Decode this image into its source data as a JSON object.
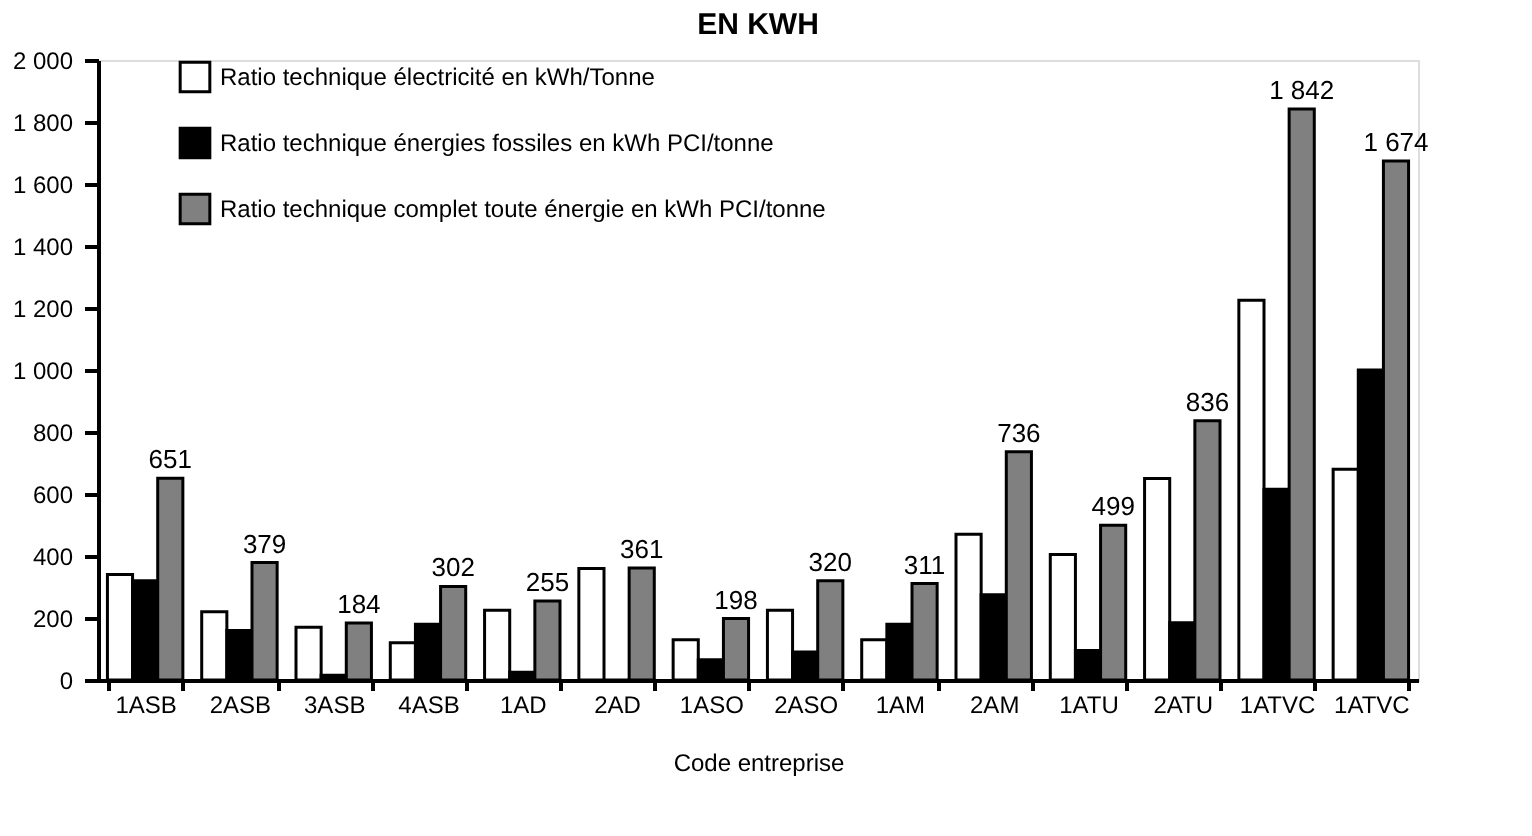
{
  "chart_data": {
    "type": "bar",
    "title": "EN KWH",
    "xlabel": "Code entreprise",
    "categories": [
      "1ASB",
      "2ASB",
      "3ASB",
      "4ASB",
      "1AD",
      "2AD",
      "1ASO",
      "2ASO",
      "1AM",
      "2AM",
      "1ATU",
      "2ATU",
      "1ATVC",
      "1ATVC"
    ],
    "series": [
      {
        "name": "Ratio technique électricité en kWh/Tonne",
        "color": "#ffffff",
        "values": [
          340,
          220,
          170,
          120,
          225,
          360,
          130,
          225,
          130,
          470,
          405,
          650,
          1225,
          680
        ]
      },
      {
        "name": "Ratio technique énergies fossiles en kWh PCI/tonne",
        "color": "#000000",
        "values": [
          320,
          160,
          15,
          180,
          25,
          0,
          65,
          90,
          180,
          275,
          95,
          185,
          615,
          1000
        ]
      },
      {
        "name": "Ratio technique complet toute énergie en kWh PCI/tonne",
        "color": "#808080",
        "values": [
          651,
          379,
          184,
          302,
          255,
          361,
          198,
          320,
          311,
          736,
          499,
          836,
          1842,
          1674
        ],
        "value_labels": [
          "651",
          "379",
          "184",
          "302",
          "255",
          "361",
          "198",
          "320",
          "311",
          "736",
          "499",
          "836",
          "1 842",
          "1 674"
        ]
      }
    ],
    "ylim": [
      0,
      2000
    ],
    "yticks": [
      0,
      200,
      400,
      600,
      800,
      {
        "value": 1000,
        "label": "1 000"
      },
      {
        "value": 1200,
        "label": "1 200"
      },
      {
        "value": 1400,
        "label": "1 400"
      },
      {
        "value": 1600,
        "label": "1 600"
      },
      {
        "value": 1800,
        "label": "1 800"
      },
      {
        "value": 2000,
        "label": "2 000"
      }
    ],
    "grid": false,
    "legend": "top left"
  }
}
